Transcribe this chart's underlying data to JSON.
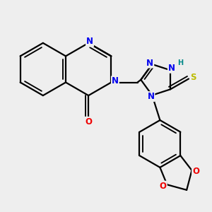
{
  "bg_color": "#eeeeee",
  "bond_color": "#000000",
  "bond_width": 1.6,
  "atom_colors": {
    "N": "#0000ee",
    "O": "#ee0000",
    "S": "#bbbb00",
    "H": "#008888",
    "C": "#000000"
  },
  "font_size_atom": 8.5,
  "font_size_h": 7.0,
  "xlim": [
    -3.8,
    4.2
  ],
  "ylim": [
    -4.2,
    3.0
  ]
}
